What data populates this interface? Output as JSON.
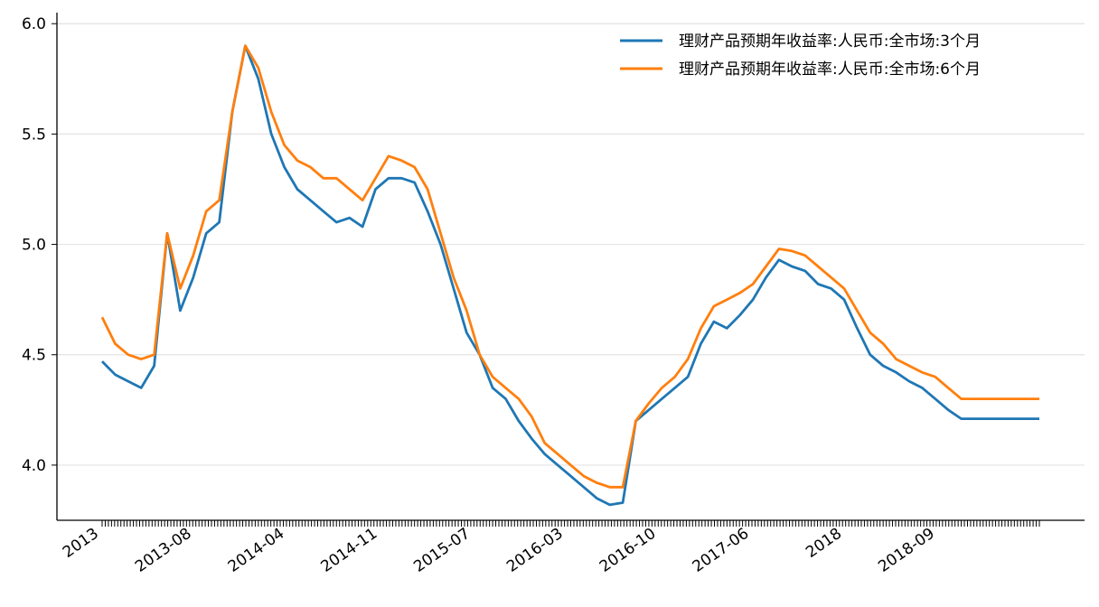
{
  "chart_data": {
    "type": "line",
    "title": "",
    "xlabel": "",
    "ylabel": "",
    "ylim": [
      3.75,
      6.05
    ],
    "y_ticks": [
      "4.0",
      "4.5",
      "5.0",
      "5.5",
      "6.0"
    ],
    "x_tick_labels": [
      "2013",
      "2013-08",
      "2014-04",
      "2014-11",
      "2015-07",
      "2016-03",
      "2016-10",
      "2017-06",
      "2018",
      "2018-09"
    ],
    "grid": "horizontal",
    "legend_position": "top-right",
    "colors": {
      "series1": "#1f77b4",
      "series2": "#ff7f0e"
    },
    "x_keys": [
      "2013-01",
      "2013-03",
      "2013-05",
      "2013-06",
      "2013-07",
      "2013-08",
      "2013-09",
      "2013-10",
      "2013-11",
      "2013-12",
      "2014-01",
      "2014-02",
      "2014-03",
      "2014-04",
      "2014-05",
      "2014-06",
      "2014-07",
      "2014-08",
      "2014-09",
      "2014-10",
      "2014-11",
      "2014-12",
      "2015-01",
      "2015-02",
      "2015-03",
      "2015-04",
      "2015-05",
      "2015-06",
      "2015-07",
      "2015-08",
      "2015-09",
      "2015-10",
      "2015-11",
      "2015-12",
      "2016-01",
      "2016-02",
      "2016-03",
      "2016-04",
      "2016-05",
      "2016-06",
      "2016-07",
      "2016-08",
      "2016-09",
      "2016-10",
      "2016-11",
      "2016-12",
      "2017-01",
      "2017-02",
      "2017-03",
      "2017-04",
      "2017-05",
      "2017-06",
      "2017-07",
      "2017-08",
      "2017-09",
      "2017-10",
      "2017-11",
      "2017-12",
      "2018-01",
      "2018-02",
      "2018-03",
      "2018-04",
      "2018-05",
      "2018-06",
      "2018-07",
      "2018-08",
      "2018-09",
      "2018-10",
      "2018-11",
      "2018-12",
      "2019-01",
      "2019-02",
      "2019-03"
    ],
    "series": [
      {
        "name": "理财产品预期年收益率:人民币:全市场:3个月",
        "values": [
          4.47,
          4.41,
          4.38,
          4.35,
          4.45,
          5.05,
          4.7,
          4.85,
          5.05,
          5.1,
          5.6,
          5.9,
          5.75,
          5.5,
          5.35,
          5.25,
          5.2,
          5.15,
          5.1,
          5.12,
          5.08,
          5.25,
          5.3,
          5.3,
          5.28,
          5.15,
          5.0,
          4.8,
          4.6,
          4.5,
          4.35,
          4.3,
          4.2,
          4.12,
          4.05,
          4.0,
          3.95,
          3.9,
          3.85,
          3.82,
          3.83,
          4.2,
          4.25,
          4.3,
          4.35,
          4.4,
          4.55,
          4.65,
          4.62,
          4.68,
          4.75,
          4.85,
          4.93,
          4.9,
          4.88,
          4.82,
          4.8,
          4.75,
          4.62,
          4.5,
          4.45,
          4.42,
          4.38,
          4.35,
          4.3,
          4.25,
          4.21,
          4.21,
          4.21,
          4.21,
          4.21,
          4.21,
          4.21
        ]
      },
      {
        "name": "理财产品预期年收益率:人民币:全市场:6个月",
        "values": [
          4.67,
          4.55,
          4.5,
          4.48,
          4.5,
          5.05,
          4.8,
          4.95,
          5.15,
          5.2,
          5.6,
          5.9,
          5.8,
          5.6,
          5.45,
          5.38,
          5.35,
          5.3,
          5.3,
          5.25,
          5.2,
          5.3,
          5.4,
          5.38,
          5.35,
          5.25,
          5.05,
          4.85,
          4.7,
          4.5,
          4.4,
          4.35,
          4.3,
          4.22,
          4.1,
          4.05,
          4.0,
          3.95,
          3.92,
          3.9,
          3.9,
          4.2,
          4.28,
          4.35,
          4.4,
          4.48,
          4.62,
          4.72,
          4.75,
          4.78,
          4.82,
          4.9,
          4.98,
          4.97,
          4.95,
          4.9,
          4.85,
          4.8,
          4.7,
          4.6,
          4.55,
          4.48,
          4.45,
          4.42,
          4.4,
          4.35,
          4.3,
          4.3,
          4.3,
          4.3,
          4.3,
          4.3,
          4.3
        ]
      }
    ]
  }
}
